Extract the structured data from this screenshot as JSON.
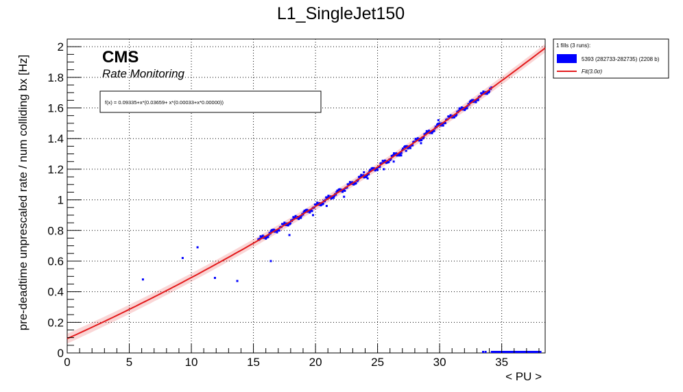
{
  "chart_data": {
    "type": "scatter",
    "title": "L1_SingleJet150",
    "xlabel": "< PU >",
    "ylabel": "pre-deadtime unprescaled rate / num colliding bx [Hz]",
    "xlim": [
      0,
      38.5
    ],
    "ylim": [
      0,
      2.05
    ],
    "xticks": [
      0,
      5,
      10,
      15,
      20,
      25,
      30,
      35
    ],
    "xtick_labels": [
      "0",
      "5",
      "10",
      "15",
      "20",
      "25",
      "30",
      "35"
    ],
    "yticks": [
      0,
      0.2,
      0.4,
      0.6,
      0.8,
      1.0,
      1.2,
      1.4,
      1.6,
      1.8,
      2.0
    ],
    "ytick_labels": [
      "0",
      "0.2",
      "0.4",
      "0.6",
      "0.8",
      "1",
      "1.2",
      "1.4",
      "1.6",
      "1.8",
      "2"
    ],
    "grid": true,
    "legend_position": "right-outside-top",
    "experiment_label": "CMS",
    "experiment_sublabel": "Rate Monitoring",
    "fit_formula": "f(x) = 0.09335+x*(0.03659+ x*(0.00033+x*0.00000))",
    "fit_coefficients": [
      0.09335,
      0.03659,
      0.00033,
      0.0
    ],
    "fit_band_sigma": 3.0,
    "legend": {
      "header": "1 fills (3 runs):",
      "entries": [
        {
          "label": "5393 (282733-282735) (2208 b)",
          "kind": "fill",
          "color": "#0000ff"
        },
        {
          "label": "Fit(3.0σ)",
          "kind": "line",
          "color": "#e31a1c"
        }
      ]
    },
    "series": [
      {
        "name": "5393 (282733-282735) (2208 b)",
        "color": "#0000ff",
        "main_trend": {
          "x_range": [
            15.4,
            34.2
          ],
          "step": 0.06,
          "jitter": 0.012
        },
        "points": [
          [
            6.1,
            0.48
          ],
          [
            9.3,
            0.62
          ],
          [
            10.5,
            0.69
          ],
          [
            11.9,
            0.49
          ],
          [
            13.7,
            0.47
          ],
          [
            16.4,
            0.6
          ],
          [
            19.8,
            0.9
          ],
          [
            22.3,
            1.02
          ],
          [
            23.9,
            1.18
          ],
          [
            26.3,
            1.25
          ],
          [
            28.5,
            1.37
          ],
          [
            29.4,
            1.45
          ],
          [
            31.9,
            1.6
          ],
          [
            33.1,
            1.66
          ],
          [
            24.2,
            1.14
          ],
          [
            17.9,
            0.77
          ],
          [
            20.9,
            0.96
          ],
          [
            27.3,
            1.32
          ],
          [
            30.2,
            1.5
          ],
          [
            25.5,
            1.2
          ],
          [
            26.9,
            1.29
          ],
          [
            33.4,
            1.69
          ],
          [
            32.6,
            1.64
          ],
          [
            29.9,
            1.52
          ],
          [
            31.3,
            1.55
          ]
        ],
        "zero_points_x": [
          33.5,
          33.7,
          34.2,
          34.6,
          35.0,
          35.5,
          36.0,
          36.5,
          37.0,
          37.5,
          38.0
        ]
      }
    ],
    "colors": {
      "series": "#0000ff",
      "fit": "#e31a1c",
      "band": "#e31a1c"
    }
  }
}
